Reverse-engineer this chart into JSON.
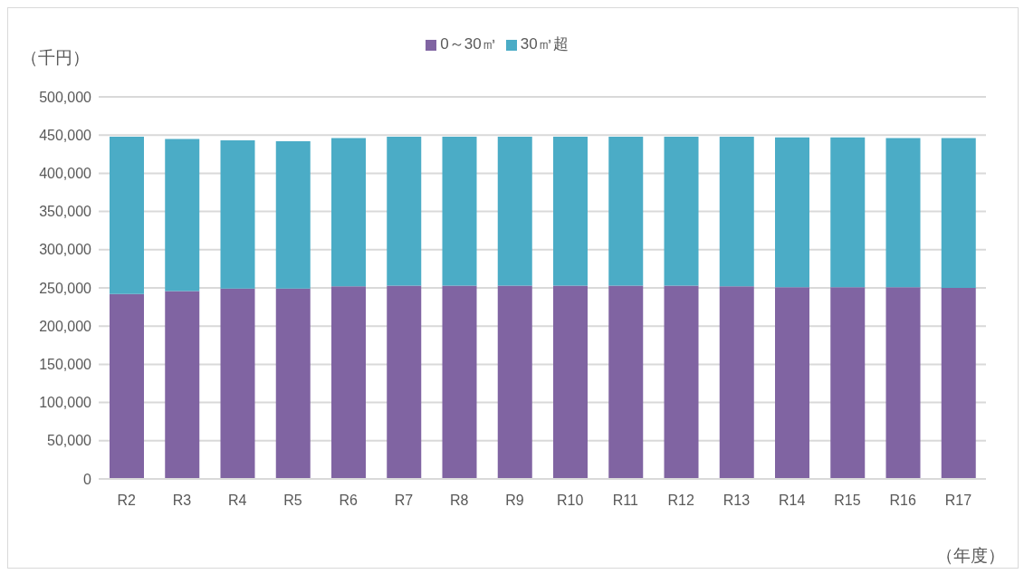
{
  "chart_data": {
    "type": "bar",
    "stacked": true,
    "xlabel": "（年度）",
    "ylabel": "（千円）",
    "categories": [
      "R2",
      "R3",
      "R4",
      "R5",
      "R6",
      "R7",
      "R8",
      "R9",
      "R10",
      "R11",
      "R12",
      "R13",
      "R14",
      "R15",
      "R16",
      "R17"
    ],
    "series": [
      {
        "name": "0～30㎥",
        "color": "#8064a2",
        "values": [
          242000,
          246000,
          249000,
          249000,
          252000,
          253000,
          253000,
          253000,
          253000,
          253000,
          253000,
          252000,
          251000,
          251000,
          251000,
          250000
        ]
      },
      {
        "name": "30㎥超",
        "color": "#4bacc6",
        "values": [
          206000,
          199000,
          194000,
          193000,
          194000,
          195000,
          195000,
          195000,
          195000,
          195000,
          195000,
          196000,
          196000,
          196000,
          195000,
          196000
        ]
      }
    ],
    "ylim": [
      0,
      500000
    ],
    "yticks": [
      {
        "value": 0,
        "label": "0"
      },
      {
        "value": 50000,
        "label": "50,000"
      },
      {
        "value": 100000,
        "label": "100,000"
      },
      {
        "value": 150000,
        "label": "150,000"
      },
      {
        "value": 200000,
        "label": "200,000"
      },
      {
        "value": 250000,
        "label": "250,000"
      },
      {
        "value": 300000,
        "label": "300,000"
      },
      {
        "value": 350000,
        "label": "350,000"
      },
      {
        "value": 400000,
        "label": "400,000"
      },
      {
        "value": 450000,
        "label": "450,000"
      },
      {
        "value": 500000,
        "label": "500,000"
      }
    ],
    "grid": "y",
    "legend": "top"
  }
}
